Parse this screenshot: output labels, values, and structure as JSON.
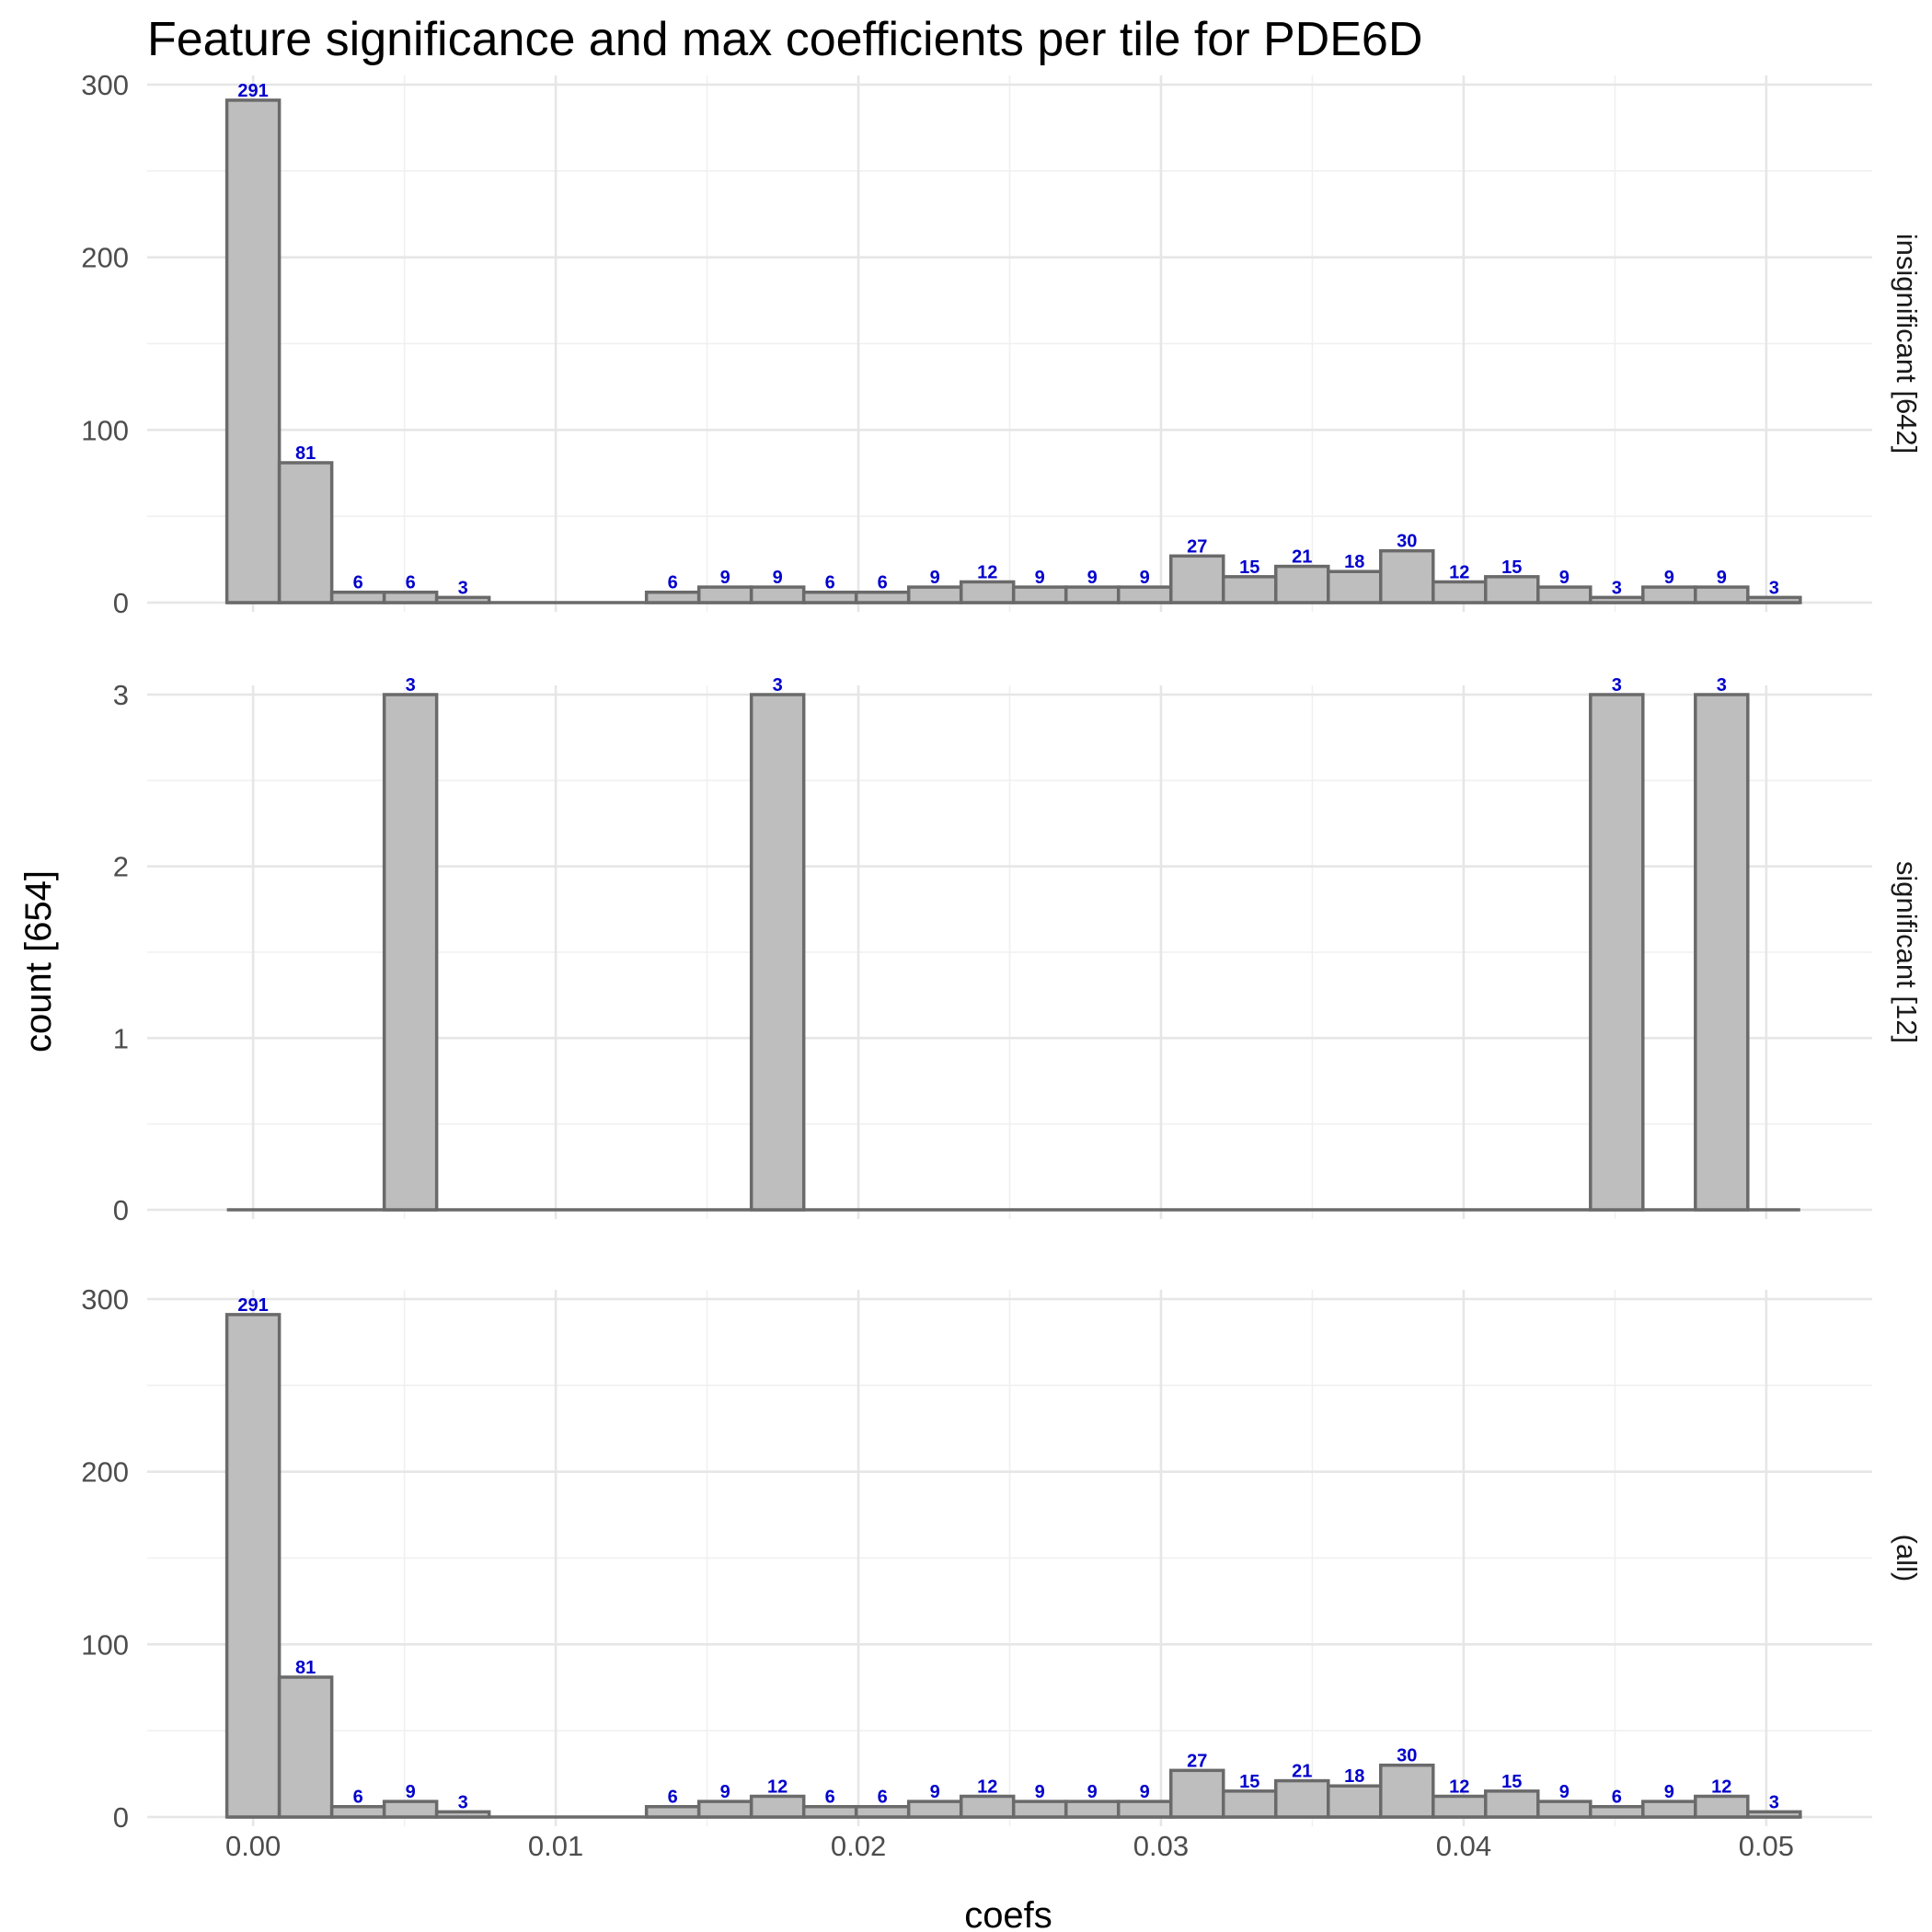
{
  "chart_data": {
    "type": "bar",
    "title": "Feature significance and max coefficients per tile for PDE6D",
    "xlabel": "coefs",
    "ylabel": "count [654]",
    "bin_width": 0.001733,
    "bin_start": -0.000867,
    "xlim": [
      -0.0035,
      0.0535
    ],
    "x_ticks": [
      0.0,
      0.01,
      0.02,
      0.03,
      0.04,
      0.05
    ],
    "x_tick_labels": [
      "0.00",
      "0.01",
      "0.02",
      "0.03",
      "0.04",
      "0.05"
    ],
    "grid": true,
    "facets": [
      {
        "strip_label": "insignificant [642]",
        "ylim": [
          0,
          300
        ],
        "y_ticks": [
          0,
          100,
          200,
          300
        ],
        "counts": [
          291,
          81,
          6,
          6,
          3,
          0,
          0,
          0,
          6,
          9,
          9,
          6,
          6,
          9,
          12,
          9,
          9,
          9,
          27,
          15,
          21,
          18,
          30,
          12,
          15,
          9,
          3,
          9,
          9,
          3
        ]
      },
      {
        "strip_label": "significant [12]",
        "ylim": [
          0,
          3
        ],
        "y_ticks": [
          0,
          1,
          2,
          3
        ],
        "counts": [
          0,
          0,
          0,
          3,
          0,
          0,
          0,
          0,
          0,
          0,
          3,
          0,
          0,
          0,
          0,
          0,
          0,
          0,
          0,
          0,
          0,
          0,
          0,
          0,
          0,
          0,
          3,
          0,
          3,
          0
        ]
      },
      {
        "strip_label": "(all)",
        "ylim": [
          0,
          300
        ],
        "y_ticks": [
          0,
          100,
          200,
          300
        ],
        "counts": [
          291,
          81,
          6,
          9,
          3,
          0,
          0,
          0,
          6,
          9,
          12,
          6,
          6,
          9,
          12,
          9,
          9,
          9,
          27,
          15,
          21,
          18,
          30,
          12,
          15,
          9,
          6,
          9,
          12,
          3
        ]
      }
    ],
    "colors": {
      "bar_fill": "#bebebe",
      "bar_outline": "#6a6a6a",
      "count_label": "#0000cc",
      "grid": "#e6e6e6"
    }
  }
}
